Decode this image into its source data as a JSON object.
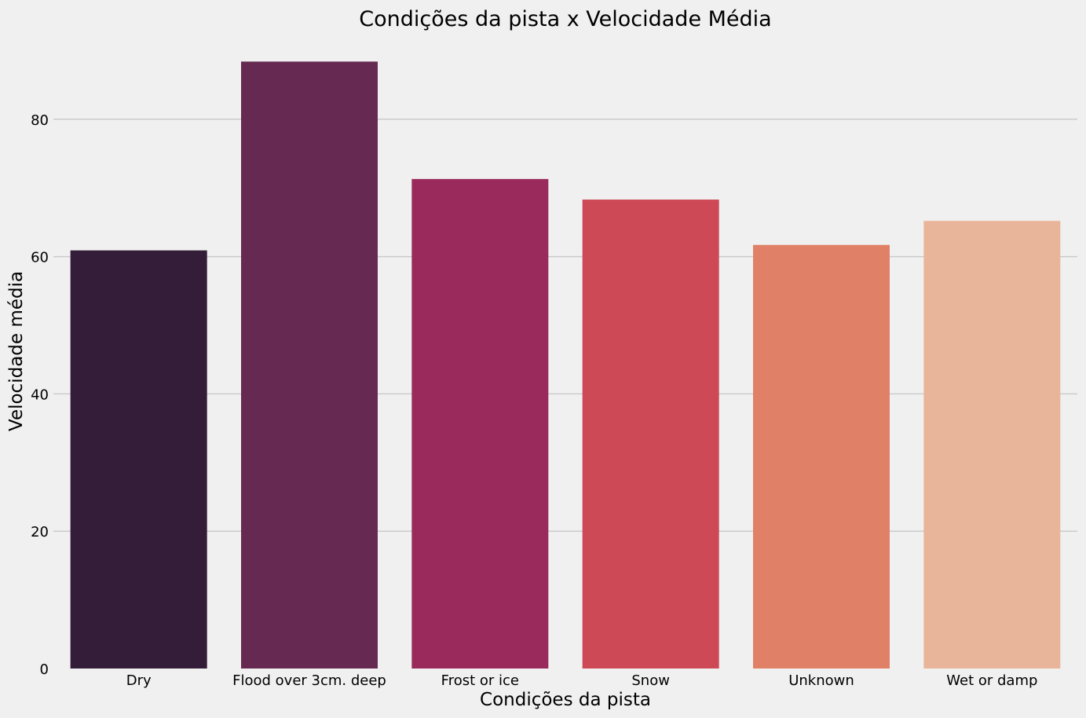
{
  "chart_data": {
    "type": "bar",
    "title": "Condições da pista x Velocidade Média",
    "xlabel": "Condições da pista",
    "ylabel": "Velocidade média",
    "categories": [
      "Dry",
      "Flood over 3cm. deep",
      "Frost or ice",
      "Snow",
      "Unknown",
      "Wet or damp"
    ],
    "values": [
      60.9,
      88.4,
      71.3,
      68.3,
      61.7,
      65.2
    ],
    "colors": [
      "#331d38",
      "#662952",
      "#9a2a5b",
      "#cc4955",
      "#e08167",
      "#e9b59a"
    ],
    "ylim": [
      0,
      90
    ],
    "yticks": [
      0,
      20,
      40,
      60,
      80
    ],
    "grid": "horizontal",
    "legend": "none"
  },
  "style": {
    "background": "#f0f0f0",
    "grid_color": "#cbcbcb"
  }
}
